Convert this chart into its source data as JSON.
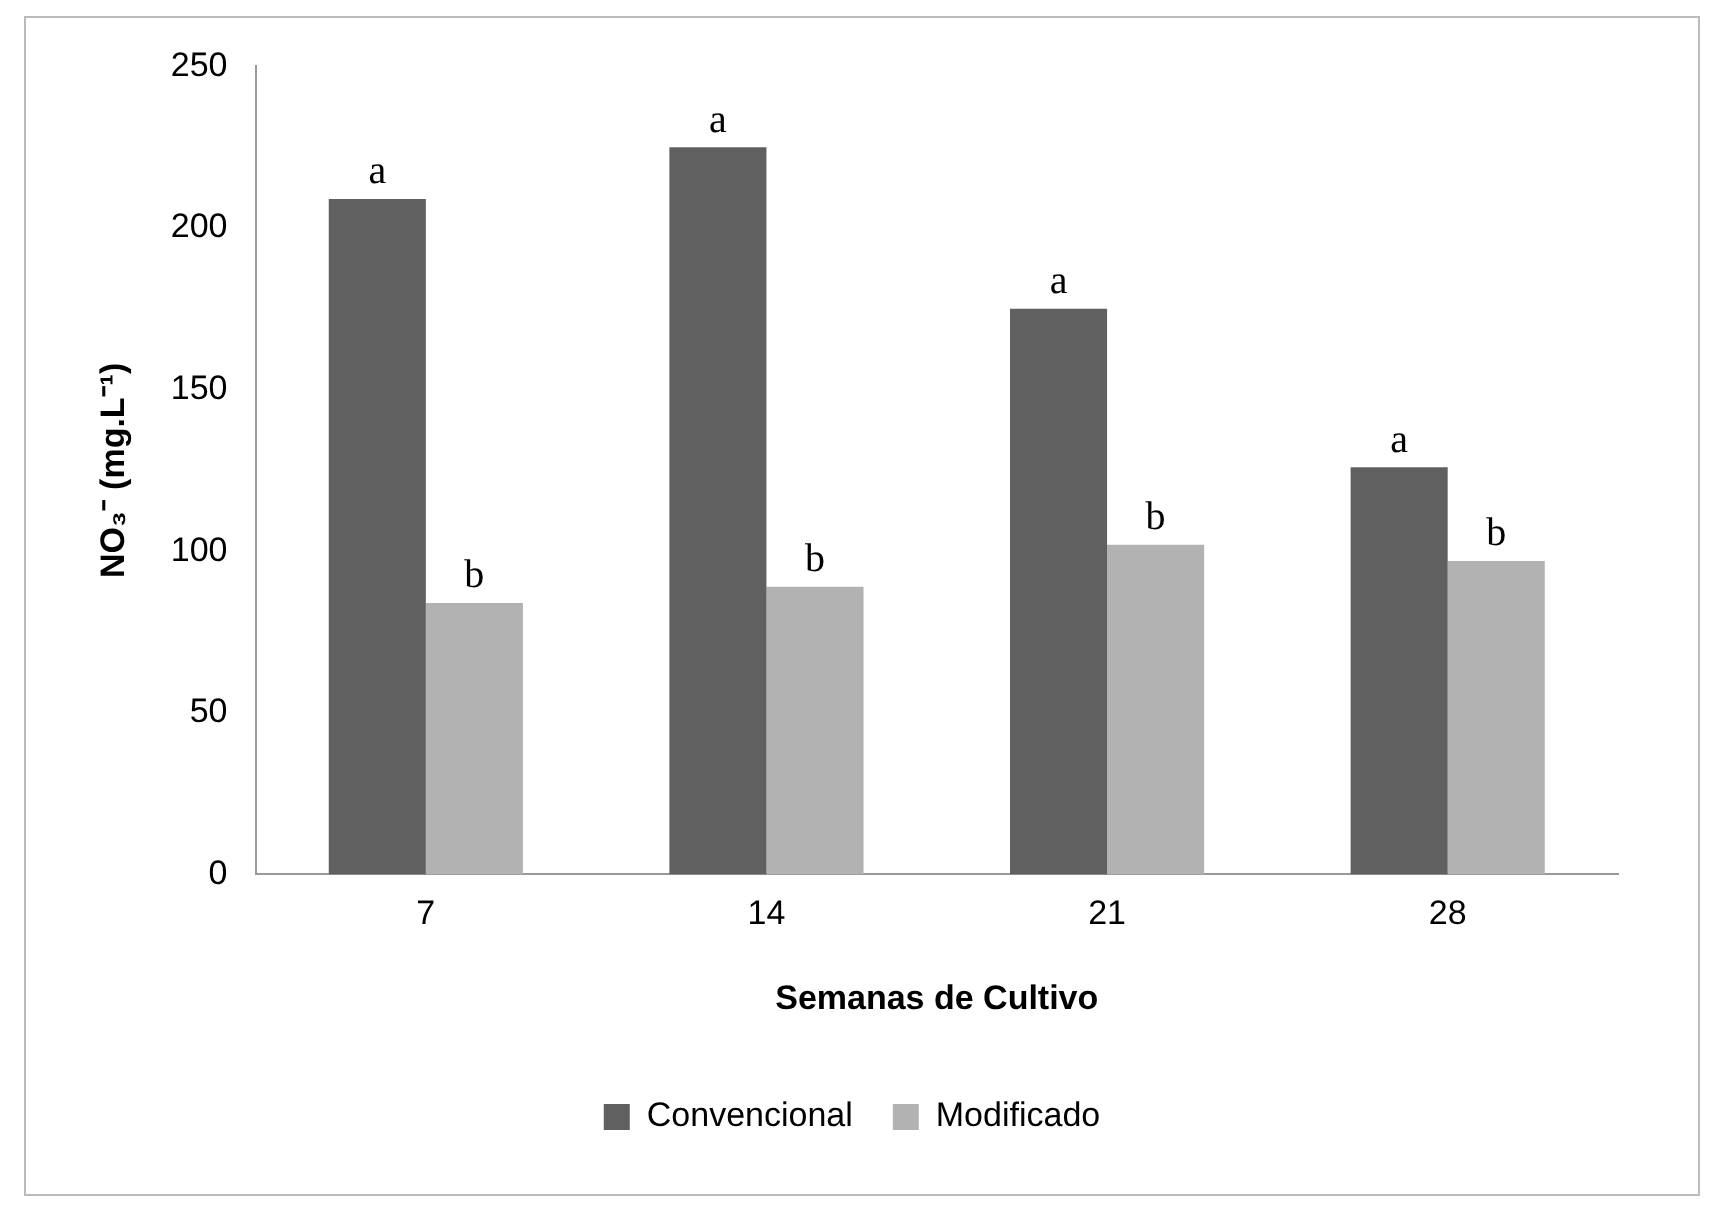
{
  "chart_data": {
    "type": "bar",
    "xlabel": "Semanas de Cultivo",
    "ylabel": "NO₃⁻ (mg.L⁻¹)",
    "categories": [
      "7",
      "14",
      "21",
      "28"
    ],
    "series": [
      {
        "name": "Convencional",
        "color": "#606060",
        "values": [
          209,
          225,
          175,
          126
        ]
      },
      {
        "name": "Modificado",
        "color": "#b2b2b2",
        "values": [
          84,
          89,
          102,
          97
        ]
      }
    ],
    "ylim": [
      0,
      250
    ],
    "yticks": [
      0,
      50,
      100,
      150,
      200,
      250
    ],
    "grid": false,
    "legend": "bottom",
    "annotations": [
      {
        "text": "a",
        "x": "7",
        "y": 209
      },
      {
        "text": "b",
        "x": "7",
        "y": 84
      },
      {
        "text": "a",
        "x": "14",
        "y": 225
      },
      {
        "text": "b",
        "x": "14",
        "y": 89
      },
      {
        "text": "a",
        "x": "21",
        "y": 175
      },
      {
        "text": "b",
        "x": "21",
        "y": 102
      },
      {
        "text": "a",
        "x": "28",
        "y": 126
      },
      {
        "text": "b",
        "x": "28",
        "y": 97
      }
    ]
  }
}
